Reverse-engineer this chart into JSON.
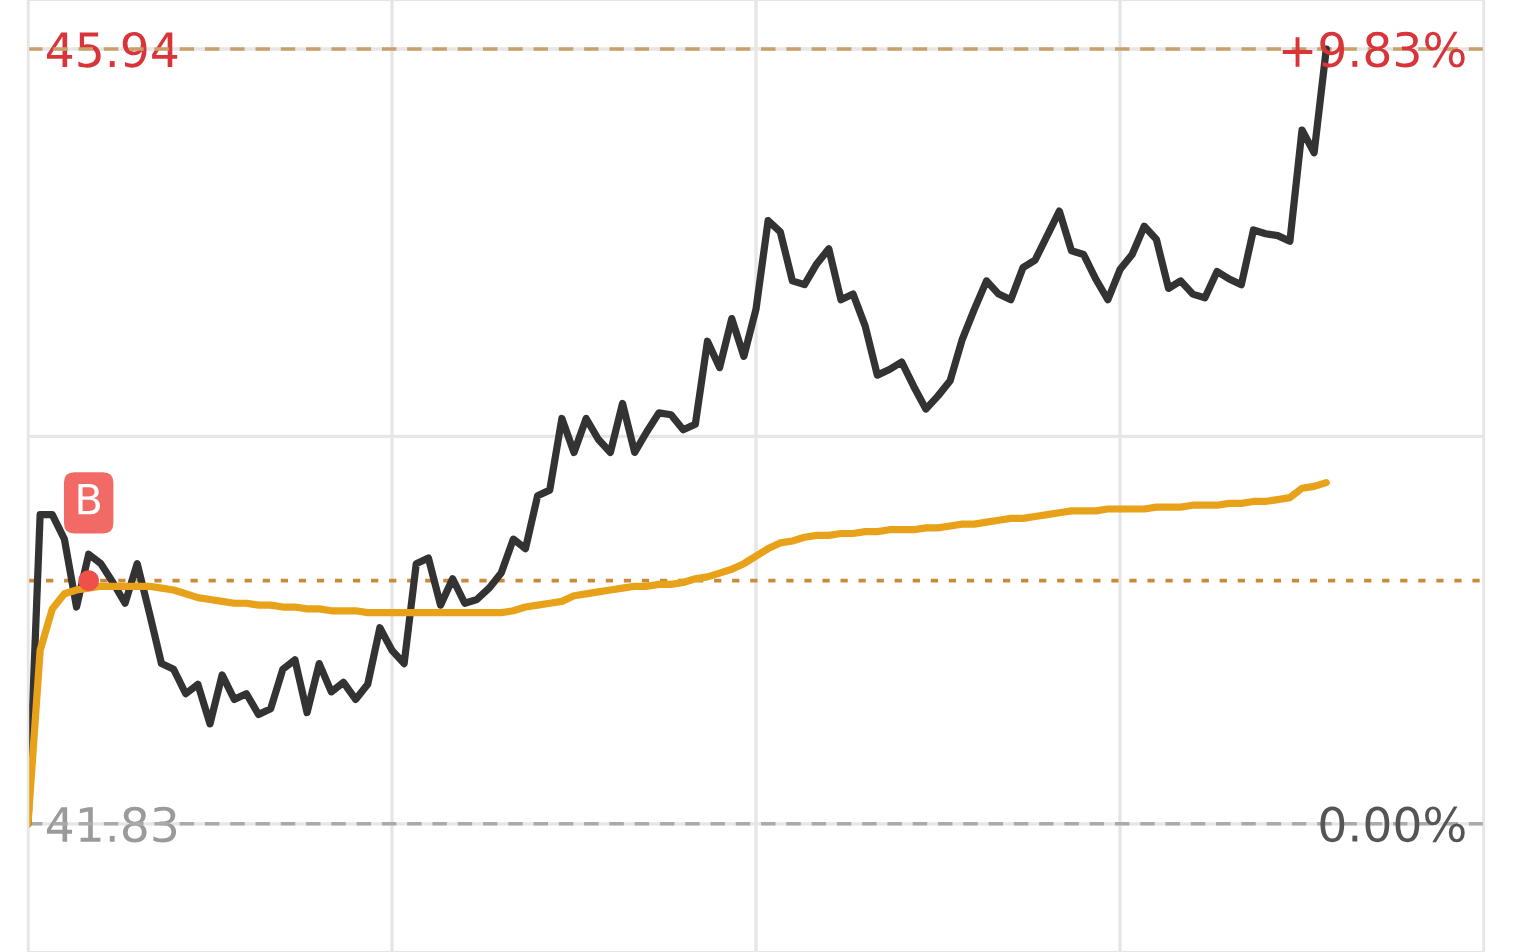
{
  "chart_data": {
    "type": "line",
    "categories": [
      null,
      null,
      null,
      null,
      null,
      null,
      null,
      null,
      null,
      null,
      null,
      null,
      null,
      null,
      null,
      null,
      null,
      null,
      null,
      null,
      null,
      null,
      null,
      null,
      null,
      null,
      null,
      null,
      null,
      null,
      null,
      null,
      null,
      null,
      null,
      null,
      null,
      null,
      null,
      null,
      null,
      null,
      null,
      null,
      null,
      null,
      null,
      null,
      null,
      null,
      null,
      null,
      null,
      null,
      null,
      null,
      null,
      null,
      null,
      null,
      null,
      null,
      null,
      null,
      null,
      null,
      null,
      null,
      null,
      null,
      null,
      null,
      null,
      null,
      null,
      null,
      null,
      null,
      null,
      null,
      null,
      null,
      null,
      null,
      null,
      null,
      null,
      null,
      null,
      null,
      null,
      null,
      null,
      null,
      null,
      null,
      null,
      null,
      null,
      null,
      null,
      null,
      null,
      null,
      null,
      null,
      null,
      null,
      null,
      null,
      null,
      null,
      null,
      null,
      null,
      null,
      null,
      null,
      null,
      null,
      null
    ],
    "series": [
      {
        "color": "#333333",
        "values": [
          41.83,
          43.47,
          43.47,
          43.34,
          42.98,
          43.26,
          43.21,
          43.11,
          43.0,
          43.21,
          42.95,
          42.68,
          42.65,
          42.52,
          42.57,
          42.36,
          42.62,
          42.49,
          42.52,
          42.41,
          42.44,
          42.65,
          42.7,
          42.42,
          42.68,
          42.53,
          42.58,
          42.49,
          42.57,
          42.87,
          42.75,
          42.68,
          43.21,
          43.24,
          42.99,
          43.13,
          43.0,
          43.02,
          43.08,
          43.16,
          43.34,
          43.29,
          43.57,
          43.6,
          43.98,
          43.8,
          43.98,
          43.87,
          43.8,
          44.06,
          43.8,
          43.91,
          44.01,
          44.0,
          43.92,
          43.95,
          44.39,
          44.25,
          44.51,
          44.31,
          44.56,
          45.03,
          44.97,
          44.71,
          44.69,
          44.8,
          44.88,
          44.61,
          44.64,
          44.47,
          44.21,
          44.24,
          44.28,
          44.15,
          44.03,
          44.1,
          44.18,
          44.4,
          44.56,
          44.71,
          44.64,
          44.61,
          44.78,
          44.82,
          44.95,
          45.08,
          44.87,
          44.85,
          44.72,
          44.61,
          44.77,
          44.85,
          45.0,
          44.93,
          44.67,
          44.71,
          44.64,
          44.62,
          44.76,
          44.72,
          44.69,
          44.98,
          44.96,
          44.95,
          44.92,
          45.51,
          45.39,
          45.94,
          null,
          null,
          null,
          null,
          null,
          null,
          null,
          null,
          null,
          null,
          null,
          null,
          null
        ]
      },
      {
        "color": "#e8a21a",
        "values": [
          41.83,
          42.75,
          42.97,
          43.05,
          43.07,
          43.08,
          43.09,
          43.09,
          43.09,
          43.09,
          43.09,
          43.08,
          43.07,
          43.05,
          43.03,
          43.02,
          43.01,
          43.0,
          43.0,
          42.99,
          42.99,
          42.98,
          42.98,
          42.97,
          42.97,
          42.96,
          42.96,
          42.96,
          42.95,
          42.95,
          42.95,
          42.95,
          42.95,
          42.95,
          42.95,
          42.95,
          42.95,
          42.95,
          42.95,
          42.95,
          42.96,
          42.98,
          42.99,
          43.0,
          43.01,
          43.04,
          43.05,
          43.06,
          43.07,
          43.08,
          43.09,
          43.09,
          43.1,
          43.1,
          43.11,
          43.13,
          43.14,
          43.16,
          43.18,
          43.21,
          43.25,
          43.29,
          43.32,
          43.33,
          43.35,
          43.36,
          43.36,
          43.37,
          43.37,
          43.38,
          43.38,
          43.39,
          43.39,
          43.39,
          43.4,
          43.4,
          43.41,
          43.42,
          43.42,
          43.43,
          43.44,
          43.45,
          43.45,
          43.46,
          43.47,
          43.48,
          43.49,
          43.49,
          43.49,
          43.5,
          43.5,
          43.5,
          43.5,
          43.51,
          43.51,
          43.51,
          43.52,
          43.52,
          43.52,
          43.53,
          43.53,
          43.54,
          43.54,
          43.55,
          43.56,
          43.61,
          43.62,
          43.64,
          null,
          null,
          null,
          null,
          null,
          null,
          null,
          null,
          null,
          null,
          null,
          null,
          null
        ]
      },
      {
        "type": "scatter",
        "name": "B",
        "color": "#f0504a",
        "marker": "circle",
        "values": [
          null,
          null,
          null,
          null,
          null,
          43.12,
          null,
          null,
          null,
          null,
          null,
          null,
          null,
          null,
          null,
          null,
          null,
          null,
          null,
          null,
          null,
          null,
          null,
          null,
          null,
          null,
          null,
          null,
          null,
          null,
          null,
          null,
          null,
          null,
          null,
          null,
          null,
          null,
          null,
          null,
          null,
          null,
          null,
          null,
          null,
          null,
          null,
          null,
          null,
          null,
          null,
          null,
          null,
          null,
          null,
          null,
          null,
          null,
          null,
          null,
          null,
          null,
          null,
          null,
          null,
          null,
          null,
          null,
          null,
          null,
          null,
          null,
          null,
          null,
          null,
          null,
          null,
          null,
          null,
          null,
          null,
          null,
          null,
          null,
          null,
          null,
          null,
          null,
          null,
          null,
          null,
          null,
          null,
          null,
          null,
          null,
          null,
          null,
          null,
          null,
          null,
          null,
          null,
          null,
          null,
          null,
          null,
          null,
          null,
          null,
          null,
          null,
          null,
          null,
          null,
          null,
          null,
          null,
          null,
          null,
          null
        ]
      }
    ],
    "ylim": [
      41.15,
      46.2
    ],
    "yticks": [
      {
        "value": 45.94,
        "label": "45.94"
      },
      {
        "value": 43.885,
        "label": null
      },
      {
        "value": 41.83,
        "label": "41.83"
      }
    ],
    "y2lim": [
      -1.63,
      10.45
    ],
    "y2ticks": [
      {
        "value": 9.83,
        "label": "+9.83%"
      },
      {
        "value": 0,
        "label": "0.00%"
      }
    ],
    "ref_lines": [
      {
        "axis": "y",
        "value": 45.94,
        "color": "#c9a06a",
        "line_style": "dashed"
      },
      {
        "axis": "y",
        "value": 43.12,
        "color": "#c98a3a",
        "line_style": "dotted"
      },
      {
        "axis": "y",
        "value": 41.83,
        "color": "#aaaaaa",
        "line_style": "dashed"
      }
    ],
    "grid": true,
    "tick_labels": "y",
    "marker": "none",
    "line_style": "solid"
  }
}
